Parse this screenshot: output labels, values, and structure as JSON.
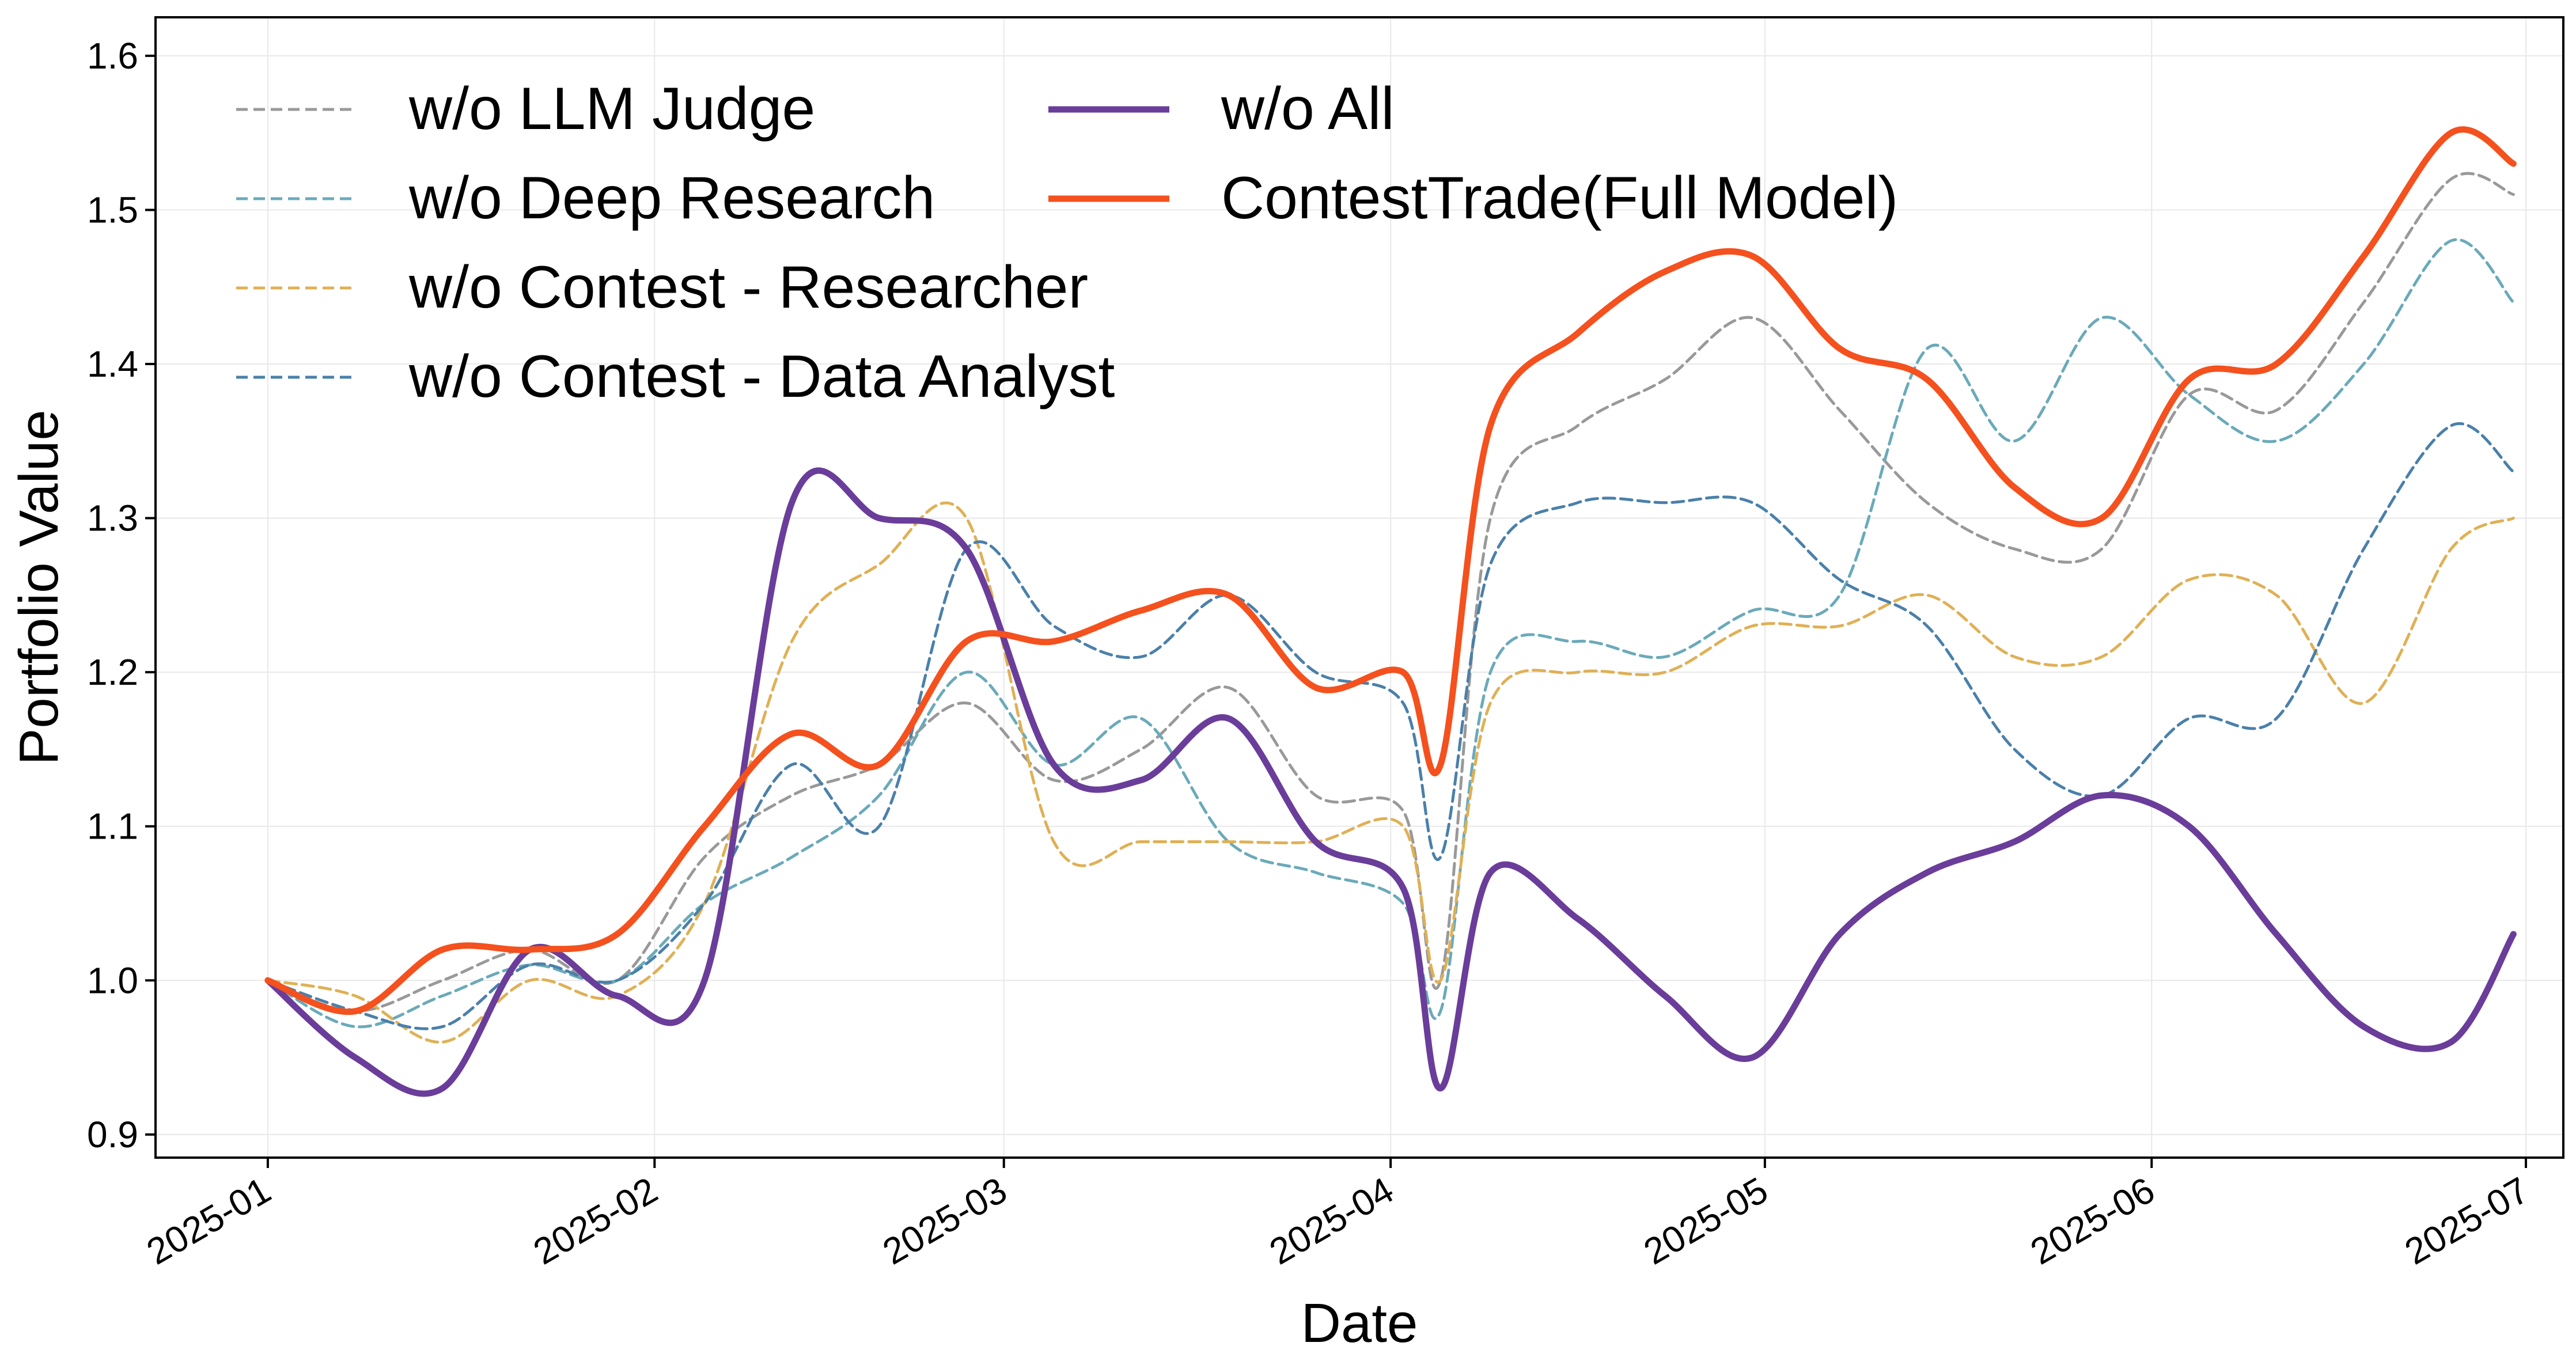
{
  "chart_data": {
    "type": "line",
    "xlabel": "Date",
    "ylabel": "Portfolio Value",
    "x_tick_labels": [
      "2025-01",
      "2025-02",
      "2025-03",
      "2025-04",
      "2025-05",
      "2025-06",
      "2025-07"
    ],
    "x_ticks": [
      "2025-01-01",
      "2025-02-01",
      "2025-03-01",
      "2025-04-01",
      "2025-05-01",
      "2025-06-01",
      "2025-07-01"
    ],
    "xlim": [
      "2024-12-23",
      "2025-07-04"
    ],
    "y_tick_labels": [
      "0.9",
      "1.0",
      "1.1",
      "1.2",
      "1.3",
      "1.4",
      "1.5",
      "1.6"
    ],
    "y_ticks": [
      0.9,
      1.0,
      1.1,
      1.2,
      1.3,
      1.4,
      1.5,
      1.6
    ],
    "ylim": [
      0.885,
      1.625
    ],
    "grid": true,
    "legend_position": "top-left",
    "x_dates": [
      "2025-01-01",
      "2025-01-08",
      "2025-01-15",
      "2025-01-22",
      "2025-01-29",
      "2025-02-05",
      "2025-02-12",
      "2025-02-19",
      "2025-02-26",
      "2025-03-05",
      "2025-03-12",
      "2025-03-19",
      "2025-03-26",
      "2025-04-02",
      "2025-04-05",
      "2025-04-09",
      "2025-04-16",
      "2025-04-23",
      "2025-04-30",
      "2025-05-07",
      "2025-05-14",
      "2025-05-21",
      "2025-05-28",
      "2025-06-04",
      "2025-06-11",
      "2025-06-18",
      "2025-06-25",
      "2025-06-30"
    ],
    "series": [
      {
        "name": "w/o LLM Judge",
        "color": "#999999",
        "dashed": true,
        "values": [
          1.0,
          0.98,
          1.0,
          1.02,
          1.0,
          1.08,
          1.12,
          1.14,
          1.18,
          1.13,
          1.15,
          1.19,
          1.12,
          1.11,
          1.0,
          1.3,
          1.36,
          1.39,
          1.43,
          1.37,
          1.31,
          1.28,
          1.28,
          1.38,
          1.37,
          1.44,
          1.52,
          1.51
        ]
      },
      {
        "name": "w/o Deep Research",
        "color": "#6aaab9",
        "dashed": true,
        "values": [
          1.0,
          0.97,
          0.99,
          1.01,
          1.0,
          1.05,
          1.08,
          1.12,
          1.2,
          1.14,
          1.17,
          1.09,
          1.07,
          1.05,
          0.98,
          1.2,
          1.22,
          1.21,
          1.24,
          1.25,
          1.41,
          1.35,
          1.43,
          1.38,
          1.35,
          1.4,
          1.48,
          1.44
        ]
      },
      {
        "name": "w/o Contest - Researcher",
        "color": "#e0b055",
        "dashed": true,
        "values": [
          1.0,
          0.99,
          0.96,
          1.0,
          0.99,
          1.05,
          1.22,
          1.27,
          1.3,
          1.09,
          1.09,
          1.09,
          1.09,
          1.1,
          1.0,
          1.18,
          1.2,
          1.2,
          1.23,
          1.23,
          1.25,
          1.21,
          1.21,
          1.26,
          1.25,
          1.18,
          1.28,
          1.3
        ]
      },
      {
        "name": "w/o Contest - Data Analyst",
        "color": "#4a80aa",
        "dashed": true,
        "values": [
          1.0,
          0.98,
          0.97,
          1.01,
          1.0,
          1.05,
          1.14,
          1.1,
          1.28,
          1.23,
          1.21,
          1.25,
          1.2,
          1.18,
          1.08,
          1.27,
          1.31,
          1.31,
          1.31,
          1.26,
          1.23,
          1.15,
          1.12,
          1.17,
          1.17,
          1.28,
          1.36,
          1.33
        ]
      },
      {
        "name": "w/o All",
        "color": "#6a3d9a",
        "dashed": false,
        "values": [
          1.0,
          0.95,
          0.93,
          1.02,
          0.99,
          1.0,
          1.31,
          1.3,
          1.28,
          1.14,
          1.13,
          1.17,
          1.09,
          1.06,
          0.93,
          1.07,
          1.04,
          0.99,
          0.95,
          1.03,
          1.07,
          1.09,
          1.12,
          1.1,
          1.03,
          0.97,
          0.96,
          1.03
        ]
      },
      {
        "name": "ContestTrade(Full Model)",
        "color": "#f4511e",
        "dashed": false,
        "values": [
          1.0,
          0.98,
          1.02,
          1.02,
          1.03,
          1.1,
          1.16,
          1.14,
          1.22,
          1.22,
          1.24,
          1.25,
          1.19,
          1.2,
          1.14,
          1.36,
          1.42,
          1.46,
          1.47,
          1.41,
          1.39,
          1.32,
          1.3,
          1.39,
          1.4,
          1.47,
          1.55,
          1.53
        ]
      }
    ]
  }
}
